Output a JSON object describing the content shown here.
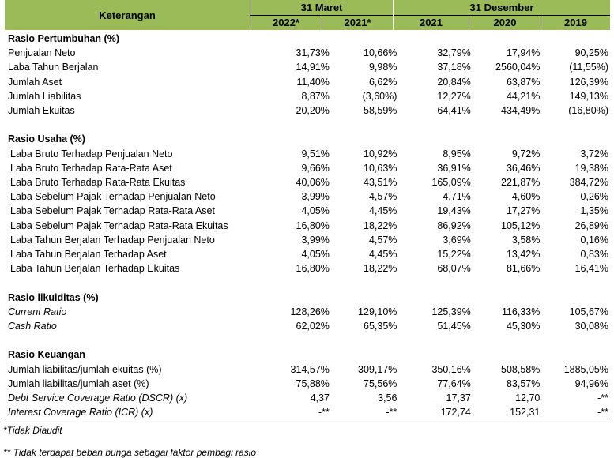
{
  "header": {
    "keterangan": "Keterangan",
    "group_march": "31 Maret",
    "group_december": "31 Desember",
    "years": [
      "2022*",
      "2021*",
      "2021",
      "2020",
      "2019"
    ]
  },
  "sections": [
    {
      "title": "Rasio Pertumbuhan (%)",
      "rows": [
        {
          "label": "Penjualan Neto",
          "values": [
            "31,73%",
            "10,66%",
            "32,79%",
            "17,94%",
            "90,25%"
          ]
        },
        {
          "label": "Laba Tahun Berjalan",
          "values": [
            "14,91%",
            "9,98%",
            "37,18%",
            "2560,04%",
            "(11,55%)"
          ]
        },
        {
          "label": "Jumlah Aset",
          "values": [
            "11,40%",
            "6,62%",
            "20,84%",
            "63,87%",
            "126,39%"
          ]
        },
        {
          "label": "Jumlah Liabilitas",
          "values": [
            "8,87%",
            "(3,60%)",
            "12,27%",
            "44,21%",
            "149,13%"
          ]
        },
        {
          "label": "Jumlah Ekuitas",
          "values": [
            "20,20%",
            "58,59%",
            "64,41%",
            "434,49%",
            "(16,80%)"
          ]
        }
      ]
    },
    {
      "title": "Rasio Usaha (%)",
      "rows": [
        {
          "label": "Laba Bruto Terhadap Penjualan Neto",
          "values": [
            "9,51%",
            "10,92%",
            "8,95%",
            "9,72%",
            "3,72%"
          ]
        },
        {
          "label": "Laba Bruto Terhadap Rata-Rata Aset",
          "values": [
            "9,66%",
            "10,63%",
            "36,91%",
            "36,46%",
            "19,38%"
          ]
        },
        {
          "label": "Laba Bruto Terhadap Rata-Rata Ekuitas",
          "values": [
            "40,06%",
            "43,51%",
            "165,09%",
            "221,87%",
            "384,72%"
          ]
        },
        {
          "label": "Laba Sebelum Pajak Terhadap Penjualan Neto",
          "values": [
            "3,99%",
            "4,57%",
            "4,71%",
            "4,60%",
            "0,26%"
          ]
        },
        {
          "label": "Laba Sebelum Pajak Terhadap Rata-Rata Aset",
          "values": [
            "4,05%",
            "4,45%",
            "19,43%",
            "17,27%",
            "1,35%"
          ]
        },
        {
          "label": "Laba Sebelum Pajak Terhadap Rata-Rata Ekuitas",
          "values": [
            "16,80%",
            "18,22%",
            "86,92%",
            "105,12%",
            "26,89%"
          ]
        },
        {
          "label": "Laba Tahun Berjalan Terhadap Penjualan Neto",
          "values": [
            "3,99%",
            "4,57%",
            "3,69%",
            "3,58%",
            "0,16%"
          ]
        },
        {
          "label": "Laba Tahun Berjalan Terhadap Aset",
          "values": [
            "4,05%",
            "4,45%",
            "15,22%",
            "13,42%",
            "0,83%"
          ]
        },
        {
          "label": "Laba Tahun Berjalan Terhadap Ekuitas",
          "values": [
            "16,80%",
            "18,22%",
            "68,07%",
            "81,66%",
            "16,41%"
          ]
        }
      ]
    },
    {
      "title": "Rasio likuiditas (%)",
      "rows": [
        {
          "label": "Current Ratio",
          "values": [
            "128,26%",
            "129,10%",
            "125,39%",
            "116,33%",
            "105,67%"
          ]
        },
        {
          "label": "Cash Ratio",
          "values": [
            "62,02%",
            "65,35%",
            "51,45%",
            "45,30%",
            "30,08%"
          ]
        }
      ]
    },
    {
      "title": "Rasio Keuangan",
      "rows": [
        {
          "label": "Jumlah liabilitas/jumlah ekuitas (%)",
          "values": [
            "314,57%",
            "309,17%",
            "350,16%",
            "508,58%",
            "1885,05%"
          ]
        },
        {
          "label": "Jumlah liabilitas/jumlah aset (%)",
          "values": [
            "75,88%",
            "75,56%",
            "77,64%",
            "83,57%",
            "94,96%"
          ]
        },
        {
          "label": "Debt Service Coverage Ratio (DSCR) (x)",
          "values": [
            "4,37",
            "3,56",
            "17,37",
            "12,70",
            "-**"
          ]
        },
        {
          "label": "Interest Coverage Ratio (ICR) (x)",
          "values": [
            "-**",
            "-**",
            "172,74",
            "152,31",
            "-**"
          ]
        }
      ]
    }
  ],
  "notes": {
    "unaudited": "*Tidak Diaudit",
    "no_interest": "** Tidak terdapat beban bunga sebagai faktor pembagi rasio"
  }
}
